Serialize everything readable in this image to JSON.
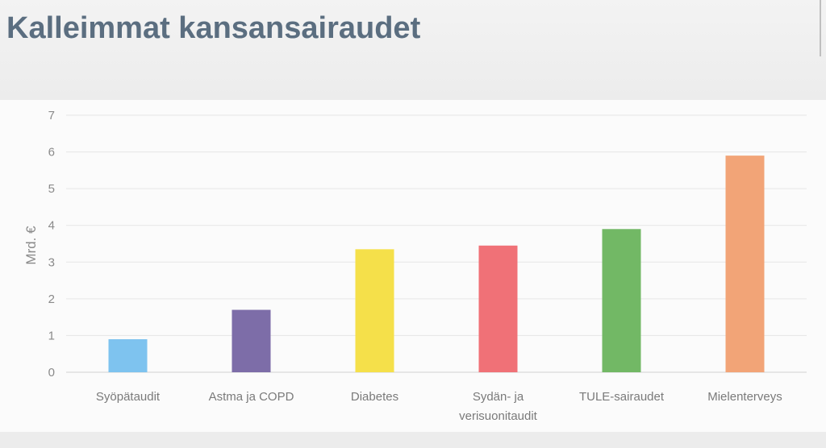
{
  "title": "Kalleimmat kansansairaudet",
  "chart_data": {
    "type": "bar",
    "categories": [
      [
        "Syöpätaudit"
      ],
      [
        "Astma ja COPD"
      ],
      [
        "Diabetes"
      ],
      [
        "Sydän- ja",
        "verisuonitaudit"
      ],
      [
        "TULE-sairaudet"
      ],
      [
        "Mielenterveys"
      ]
    ],
    "values": [
      0.9,
      1.7,
      3.35,
      3.45,
      3.9,
      5.9
    ],
    "colors": [
      "#7ec3ef",
      "#7d6da8",
      "#f5e04a",
      "#f07177",
      "#72b865",
      "#f2a477"
    ],
    "ylabel": "Mrd. €",
    "xlabel": "",
    "ylim": [
      0,
      7
    ],
    "yticks": [
      0,
      1,
      2,
      3,
      4,
      5,
      6,
      7
    ],
    "grid": true,
    "legend": false
  }
}
